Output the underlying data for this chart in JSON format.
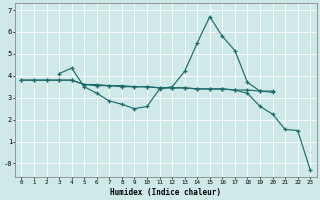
{
  "xlabel": "Humidex (Indice chaleur)",
  "bg_color": "#cfe8e8",
  "line_color": "#1e6b6b",
  "grid_color": "#b0d0d0",
  "series": {
    "line_flat": {
      "x": [
        0,
        1,
        2,
        3,
        4,
        5,
        6,
        7,
        8,
        9,
        10,
        11,
        12,
        13,
        14,
        15,
        16,
        17,
        18,
        19,
        20
      ],
      "y": [
        3.8,
        3.8,
        3.8,
        3.8,
        3.8,
        3.6,
        3.6,
        3.55,
        3.55,
        3.5,
        3.5,
        3.45,
        3.45,
        3.45,
        3.4,
        3.4,
        3.4,
        3.35,
        3.35,
        3.3,
        3.3
      ]
    },
    "line_peak": {
      "x": [
        3,
        4,
        5,
        6,
        7,
        8,
        9,
        10,
        11,
        12,
        13,
        14,
        15,
        16,
        17,
        18,
        19,
        20
      ],
      "y": [
        4.1,
        4.35,
        3.5,
        3.2,
        2.85,
        2.7,
        2.5,
        2.6,
        3.4,
        3.5,
        4.2,
        5.5,
        6.7,
        5.8,
        5.15,
        3.7,
        3.3,
        3.25
      ]
    },
    "line_drop": {
      "x": [
        0,
        1,
        2,
        3,
        4,
        5,
        6,
        7,
        8,
        9,
        10,
        11,
        12,
        13,
        14,
        15,
        16,
        17,
        18,
        19,
        20,
        21,
        22,
        23
      ],
      "y": [
        3.8,
        3.8,
        3.8,
        3.8,
        3.8,
        3.6,
        3.55,
        3.55,
        3.5,
        3.5,
        3.5,
        3.45,
        3.45,
        3.45,
        3.4,
        3.4,
        3.4,
        3.35,
        3.2,
        2.6,
        2.25,
        1.55,
        1.5,
        -0.3
      ]
    }
  },
  "xlim": [
    -0.5,
    23.5
  ],
  "ylim": [
    -0.6,
    7.3
  ],
  "yticks": [
    0,
    1,
    2,
    3,
    4,
    5,
    6,
    7
  ],
  "ytick_labels": [
    "-0",
    "1",
    "2",
    "3",
    "4",
    "5",
    "6",
    "7"
  ],
  "xticks": [
    0,
    1,
    2,
    3,
    4,
    5,
    6,
    7,
    8,
    9,
    10,
    11,
    12,
    13,
    14,
    15,
    16,
    17,
    18,
    19,
    20,
    21,
    22,
    23
  ]
}
